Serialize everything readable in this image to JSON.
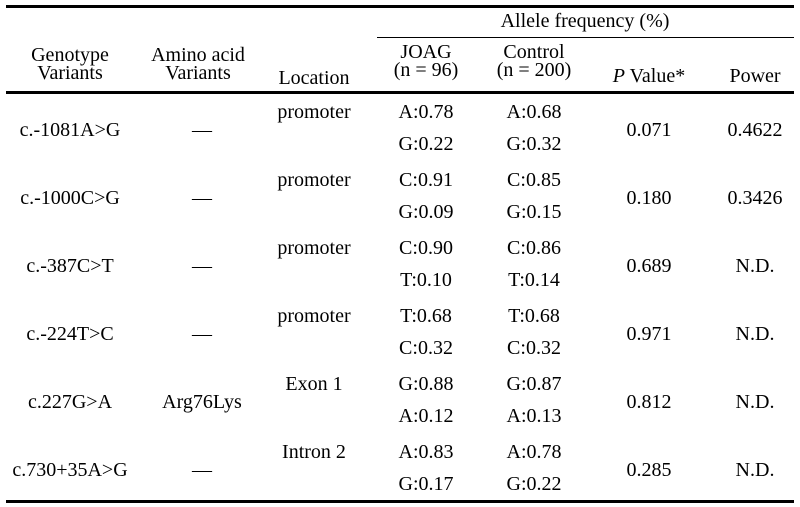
{
  "header": {
    "allele_group": "Allele frequency (%)",
    "genotype_line1": "Genotype",
    "genotype_line2": "Variants",
    "amino_line1": "Amino acid",
    "amino_line2": "Variants",
    "location": "Location",
    "joag_line1": "JOAG",
    "joag_line2": "(n = 96)",
    "control_line1": "Control",
    "control_line2": "(n = 200)",
    "pvalue_p": "P",
    "pvalue_rest": " Value*",
    "power": "Power"
  },
  "rows": [
    {
      "genotype": "c.-1081A>G",
      "amino": "—",
      "location": "promoter",
      "joag": [
        "A:0.78",
        "G:0.22"
      ],
      "control": [
        "A:0.68",
        "G:0.32"
      ],
      "p": "0.071",
      "power": "0.4622"
    },
    {
      "genotype": "c.-1000C>G",
      "amino": "—",
      "location": "promoter",
      "joag": [
        "C:0.91",
        "G:0.09"
      ],
      "control": [
        "C:0.85",
        "G:0.15"
      ],
      "p": "0.180",
      "power": "0.3426"
    },
    {
      "genotype": "c.-387C>T",
      "amino": "—",
      "location": "promoter",
      "joag": [
        "C:0.90",
        "T:0.10"
      ],
      "control": [
        "C:0.86",
        "T:0.14"
      ],
      "p": "0.689",
      "power": "N.D."
    },
    {
      "genotype": "c.-224T>C",
      "amino": "—",
      "location": "promoter",
      "joag": [
        "T:0.68",
        "C:0.32"
      ],
      "control": [
        "T:0.68",
        "C:0.32"
      ],
      "p": "0.971",
      "power": "N.D."
    },
    {
      "genotype": "c.227G>A",
      "amino": "Arg76Lys",
      "location": "Exon 1",
      "joag": [
        "G:0.88",
        "A:0.12"
      ],
      "control": [
        "G:0.87",
        "A:0.13"
      ],
      "p": "0.812",
      "power": "N.D."
    },
    {
      "genotype": "c.730+35A>G",
      "amino": "—",
      "location": "Intron 2",
      "joag": [
        "A:0.83",
        "G:0.17"
      ],
      "control": [
        "A:0.78",
        "G:0.22"
      ],
      "p": "0.285",
      "power": "N.D."
    }
  ]
}
